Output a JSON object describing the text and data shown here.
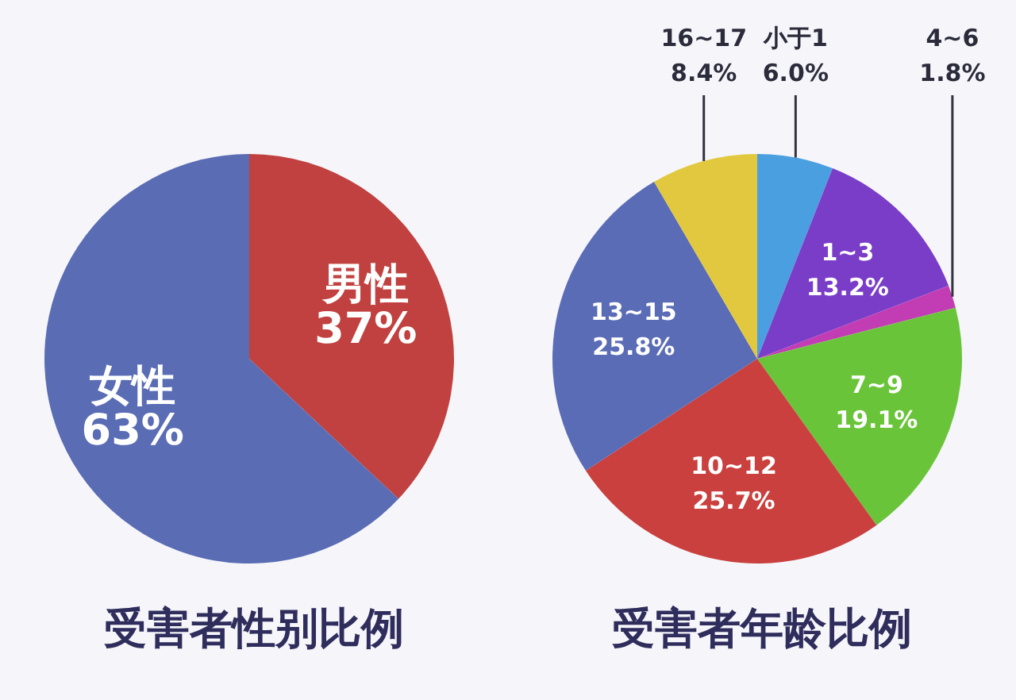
{
  "chart_data": [
    {
      "type": "pie",
      "title": "受害者性别比例",
      "categories": [
        "男性",
        "女性"
      ],
      "values": [
        37,
        63
      ],
      "colors": [
        "#c0413f",
        "#5a6cb4"
      ],
      "value_labels": [
        "37%",
        "63%"
      ]
    },
    {
      "type": "pie",
      "title": "受害者年龄比例",
      "categories": [
        "小于1",
        "1~3",
        "4~6",
        "7~9",
        "10~12",
        "13~15",
        "16~17"
      ],
      "values": [
        6.0,
        13.2,
        1.8,
        19.1,
        25.7,
        25.8,
        8.4
      ],
      "colors": [
        "#4a9fe0",
        "#7a3dc8",
        "#c23cb4",
        "#6ac43a",
        "#c9403e",
        "#5a6cb6",
        "#e2c83e"
      ],
      "value_labels": [
        "6.0%",
        "13.2%",
        "1.8%",
        "19.1%",
        "25.7%",
        "25.8%",
        "8.4%"
      ]
    }
  ]
}
